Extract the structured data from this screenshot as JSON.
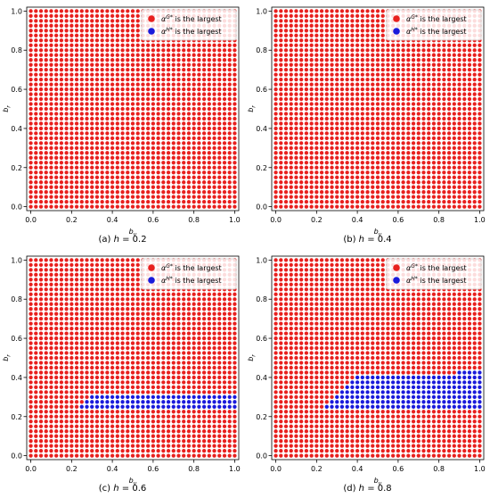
{
  "chart_data": [
    {
      "type": "scatter",
      "caption_letter": "(a)",
      "caption_var": "h",
      "caption_value": "0.2",
      "xlabel": "b_v",
      "ylabel": "b_r",
      "xlim": [
        -0.02,
        1.02
      ],
      "ylim": [
        -0.02,
        1.02
      ],
      "xticks": [
        "0.0",
        "0.2",
        "0.4",
        "0.6",
        "0.8",
        "1.0"
      ],
      "yticks": [
        "0.0",
        "0.2",
        "0.4",
        "0.6",
        "0.8",
        "1.0"
      ],
      "grid_n": 41,
      "grid_step": 0.025,
      "legend_position": "top-right",
      "series": [
        {
          "name": "α^{G*} is the largest",
          "color": "#e8201e"
        },
        {
          "name": "α^{H*} is the largest",
          "color": "#1a1adb"
        }
      ],
      "blue_region": []
    },
    {
      "type": "scatter",
      "caption_letter": "(b)",
      "caption_var": "h",
      "caption_value": "0.4",
      "xlabel": "b_v",
      "ylabel": "b_r",
      "xlim": [
        -0.02,
        1.02
      ],
      "ylim": [
        -0.02,
        1.02
      ],
      "xticks": [
        "0.0",
        "0.2",
        "0.4",
        "0.6",
        "0.8",
        "1.0"
      ],
      "yticks": [
        "0.0",
        "0.2",
        "0.4",
        "0.6",
        "0.8",
        "1.0"
      ],
      "grid_n": 41,
      "grid_step": 0.025,
      "legend_position": "top-right",
      "series": [
        {
          "name": "α^{G*} is the largest",
          "color": "#e8201e"
        },
        {
          "name": "α^{H*} is the largest",
          "color": "#1a1adb"
        }
      ],
      "blue_region": []
    },
    {
      "type": "scatter",
      "caption_letter": "(c)",
      "caption_var": "h",
      "caption_value": "0.6",
      "xlabel": "b_v",
      "ylabel": "b_r",
      "xlim": [
        -0.02,
        1.02
      ],
      "ylim": [
        -0.02,
        1.02
      ],
      "xticks": [
        "0.0",
        "0.2",
        "0.4",
        "0.6",
        "0.8",
        "1.0"
      ],
      "yticks": [
        "0.0",
        "0.2",
        "0.4",
        "0.6",
        "0.8",
        "1.0"
      ],
      "grid_n": 41,
      "grid_step": 0.025,
      "legend_position": "top-right",
      "series": [
        {
          "name": "α^{G*} is the largest",
          "color": "#e8201e"
        },
        {
          "name": "α^{H*} is the largest",
          "color": "#1a1adb"
        }
      ],
      "blue_region": [
        {
          "y": 0.25,
          "x_min": 0.25,
          "x_max": 1.0
        },
        {
          "y": 0.275,
          "x_min": 0.275,
          "x_max": 1.0
        },
        {
          "y": 0.3,
          "x_min": 0.3,
          "x_max": 1.0
        }
      ]
    },
    {
      "type": "scatter",
      "caption_letter": "(d)",
      "caption_var": "h",
      "caption_value": "0.8",
      "xlabel": "b_v",
      "ylabel": "b_r",
      "xlim": [
        -0.02,
        1.02
      ],
      "ylim": [
        -0.02,
        1.02
      ],
      "xticks": [
        "0.0",
        "0.2",
        "0.4",
        "0.6",
        "0.8",
        "1.0"
      ],
      "yticks": [
        "0.0",
        "0.2",
        "0.4",
        "0.6",
        "0.8",
        "1.0"
      ],
      "grid_n": 41,
      "grid_step": 0.025,
      "legend_position": "top-right",
      "series": [
        {
          "name": "α^{G*} is the largest",
          "color": "#e8201e"
        },
        {
          "name": "α^{H*} is the largest",
          "color": "#1a1adb"
        }
      ],
      "blue_region": [
        {
          "y": 0.25,
          "x_min": 0.25,
          "x_max": 1.0
        },
        {
          "y": 0.275,
          "x_min": 0.275,
          "x_max": 1.0
        },
        {
          "y": 0.3,
          "x_min": 0.3,
          "x_max": 1.0
        },
        {
          "y": 0.325,
          "x_min": 0.325,
          "x_max": 1.0
        },
        {
          "y": 0.35,
          "x_min": 0.35,
          "x_max": 1.0
        },
        {
          "y": 0.375,
          "x_min": 0.375,
          "x_max": 1.0
        },
        {
          "y": 0.4,
          "x_min": 0.4,
          "x_max": 1.0
        },
        {
          "y": 0.425,
          "x_min": 0.9,
          "x_max": 1.0
        }
      ]
    }
  ]
}
